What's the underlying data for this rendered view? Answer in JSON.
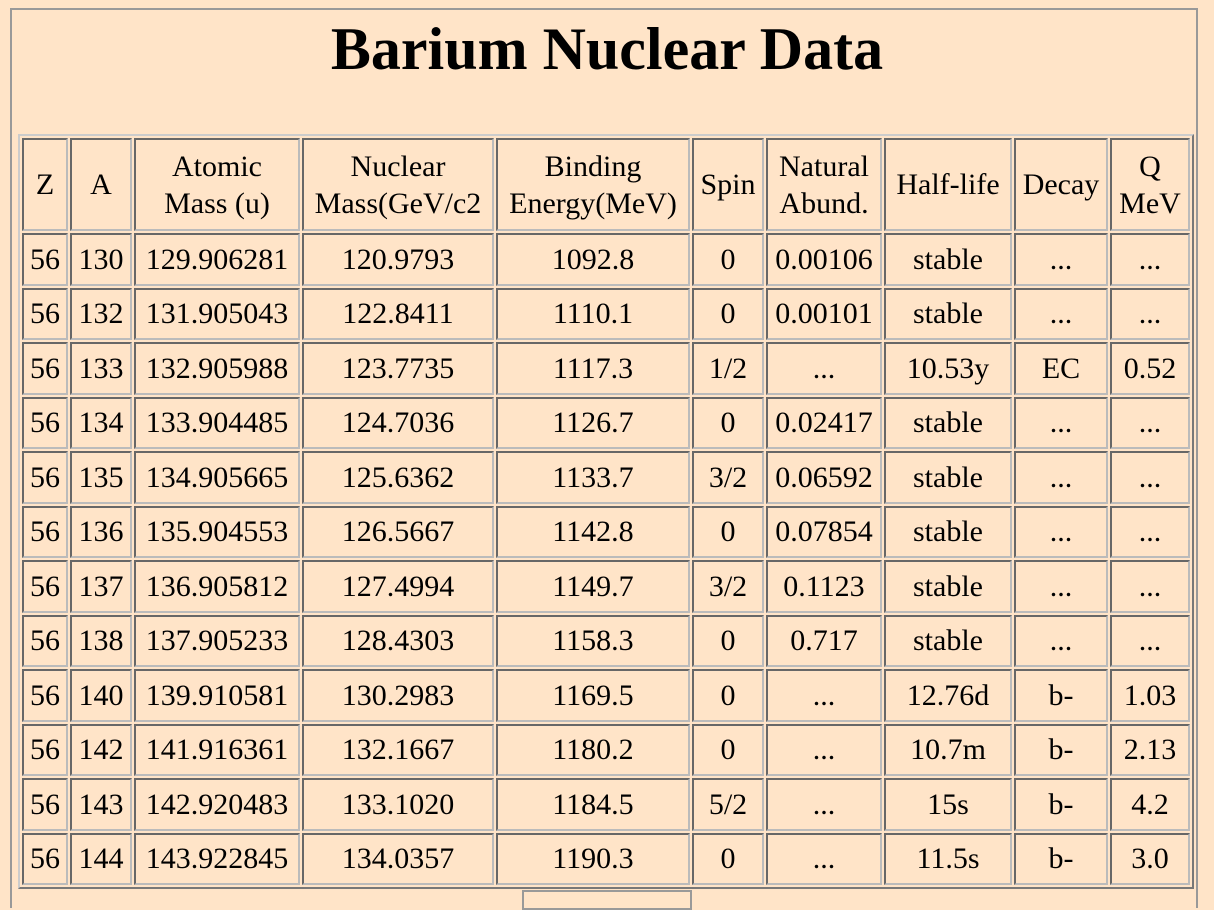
{
  "header": {
    "title": "Barium Nuclear Data"
  },
  "table": {
    "header": [
      "Z",
      "A",
      "Atomic Mass (u)",
      "Nuclear Mass(GeV/c2",
      "Binding Energy(MeV)",
      "Spin",
      "Natural Abund.",
      "Half-life",
      "Decay",
      "Q MeV"
    ],
    "rows": [
      [
        "56",
        "130",
        "129.906281",
        "120.9793",
        "1092.8",
        "0",
        "0.00106",
        "stable",
        "...",
        "..."
      ],
      [
        "56",
        "132",
        "131.905043",
        "122.8411",
        "1110.1",
        "0",
        "0.00101",
        "stable",
        "...",
        "..."
      ],
      [
        "56",
        "133",
        "132.905988",
        "123.7735",
        "1117.3",
        "1/2",
        "...",
        "10.53y",
        "EC",
        "0.52"
      ],
      [
        "56",
        "134",
        "133.904485",
        "124.7036",
        "1126.7",
        "0",
        "0.02417",
        "stable",
        "...",
        "..."
      ],
      [
        "56",
        "135",
        "134.905665",
        "125.6362",
        "1133.7",
        "3/2",
        "0.06592",
        "stable",
        "...",
        "..."
      ],
      [
        "56",
        "136",
        "135.904553",
        "126.5667",
        "1142.8",
        "0",
        "0.07854",
        "stable",
        "...",
        "..."
      ],
      [
        "56",
        "137",
        "136.905812",
        "127.4994",
        "1149.7",
        "3/2",
        "0.1123",
        "stable",
        "...",
        "..."
      ],
      [
        "56",
        "138",
        "137.905233",
        "128.4303",
        "1158.3",
        "0",
        "0.717",
        "stable",
        "...",
        "..."
      ],
      [
        "56",
        "140",
        "139.910581",
        "130.2983",
        "1169.5",
        "0",
        "...",
        "12.76d",
        "b-",
        "1.03"
      ],
      [
        "56",
        "142",
        "141.916361",
        "132.1667",
        "1180.2",
        "0",
        "...",
        "10.7m",
        "b-",
        "2.13"
      ],
      [
        "56",
        "143",
        "142.920483",
        "133.1020",
        "1184.5",
        "5/2",
        "...",
        "15s",
        "b-",
        "4.2"
      ],
      [
        "56",
        "144",
        "143.922845",
        "134.0357",
        "1190.3",
        "0",
        "...",
        "11.5s",
        "b-",
        "3.0"
      ]
    ]
  }
}
